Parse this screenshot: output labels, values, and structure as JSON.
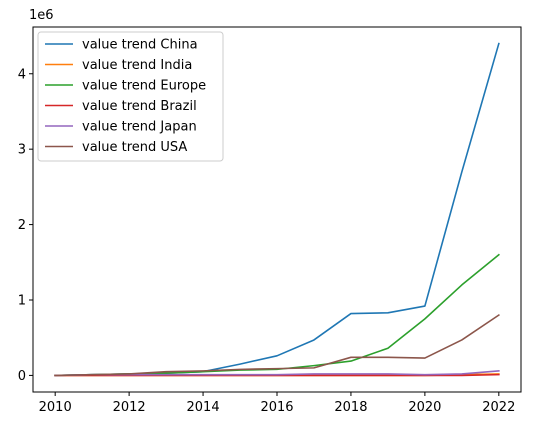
{
  "chart_data": {
    "type": "line",
    "title": "",
    "xlabel": "",
    "ylabel": "",
    "y_multiplier_label": "1e6",
    "x": [
      2010,
      2011,
      2012,
      2013,
      2014,
      2015,
      2016,
      2017,
      2018,
      2019,
      2020,
      2021,
      2022
    ],
    "xlim": [
      2009.4,
      2022.6
    ],
    "ylim": [
      -0.22,
      4.62
    ],
    "xticks": [
      2010,
      2012,
      2014,
      2016,
      2018,
      2020,
      2022
    ],
    "yticks": [
      0,
      1,
      2,
      3,
      4
    ],
    "grid": false,
    "legend_position": "top-left",
    "series": [
      {
        "name": "value trend China",
        "color": "#1f77b4",
        "values": [
          0.0,
          0.01,
          0.02,
          0.03,
          0.05,
          0.15,
          0.26,
          0.47,
          0.82,
          0.83,
          0.92,
          2.7,
          4.4
        ]
      },
      {
        "name": "value trend India",
        "color": "#ff7f0e",
        "values": [
          0.0,
          0.0,
          0.0,
          0.0,
          0.0,
          0.0,
          0.0,
          0.0,
          0.0,
          0.0,
          0.0,
          0.01,
          0.02
        ]
      },
      {
        "name": "value trend Europe",
        "color": "#2ca02c",
        "values": [
          0.0,
          0.01,
          0.02,
          0.03,
          0.05,
          0.07,
          0.08,
          0.13,
          0.19,
          0.36,
          0.75,
          1.2,
          1.6
        ]
      },
      {
        "name": "value trend Brazil",
        "color": "#d62728",
        "values": [
          0.0,
          0.0,
          0.0,
          0.0,
          0.0,
          0.0,
          0.0,
          0.0,
          0.0,
          0.0,
          0.0,
          0.0,
          0.01
        ]
      },
      {
        "name": "value trend Japan",
        "color": "#9467bd",
        "values": [
          0.0,
          0.01,
          0.01,
          0.01,
          0.01,
          0.01,
          0.01,
          0.02,
          0.02,
          0.02,
          0.01,
          0.02,
          0.06
        ]
      },
      {
        "name": "value trend USA",
        "color": "#8c564b",
        "values": [
          0.0,
          0.01,
          0.02,
          0.05,
          0.06,
          0.08,
          0.09,
          0.1,
          0.24,
          0.24,
          0.23,
          0.47,
          0.8
        ]
      }
    ]
  }
}
